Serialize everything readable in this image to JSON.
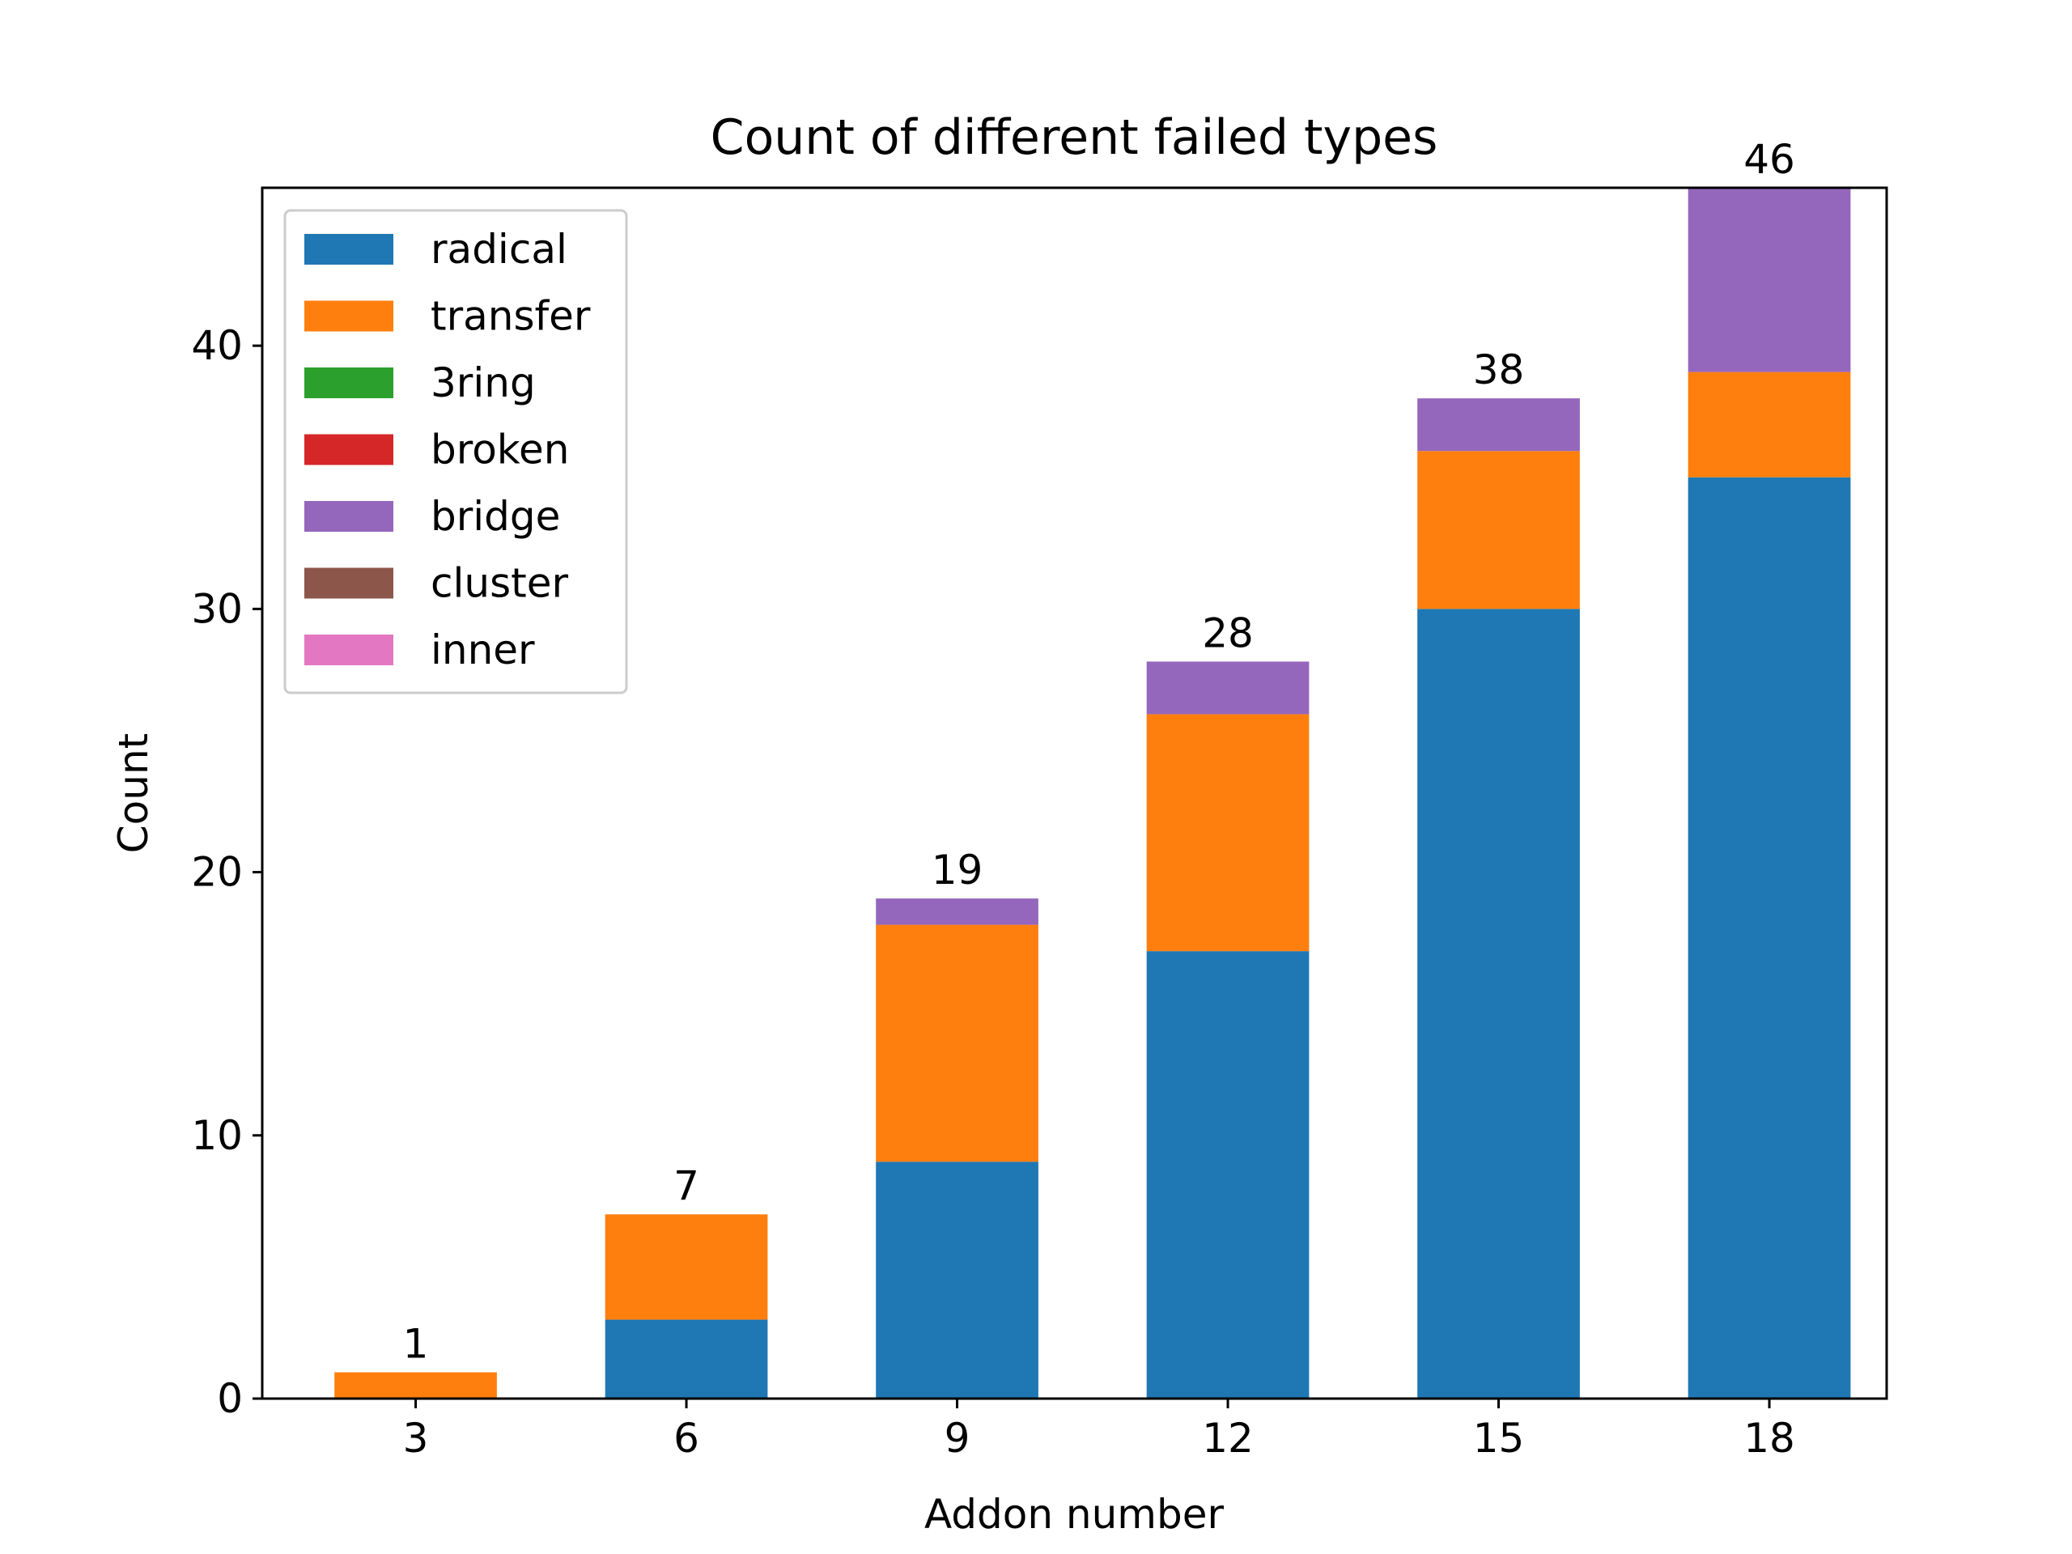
{
  "chart_data": {
    "type": "bar",
    "stacked": true,
    "title": "Count of different failed types",
    "xlabel": "Addon number",
    "ylabel": "Count",
    "categories": [
      "3",
      "6",
      "9",
      "12",
      "15",
      "18"
    ],
    "x_ticks": [
      "3",
      "6",
      "9",
      "12",
      "15",
      "18"
    ],
    "y_ticks": [
      "0",
      "10",
      "20",
      "30",
      "40"
    ],
    "xlim": [
      1.3,
      19.3
    ],
    "ylim": [
      0,
      46
    ],
    "grid": false,
    "legend_position": "top-left",
    "series": [
      {
        "name": "radical",
        "color": "#1f77b4",
        "values": [
          0,
          3,
          9,
          17,
          30,
          35
        ]
      },
      {
        "name": "transfer",
        "color": "#ff7f0e",
        "values": [
          1,
          4,
          9,
          9,
          6,
          4
        ]
      },
      {
        "name": "3ring",
        "color": "#2ca02c",
        "values": [
          0,
          0,
          0,
          0,
          0,
          0
        ]
      },
      {
        "name": "broken",
        "color": "#d62728",
        "values": [
          0,
          0,
          0,
          0,
          0,
          0
        ]
      },
      {
        "name": "bridge",
        "color": "#9467bd",
        "values": [
          0,
          0,
          1,
          2,
          2,
          7
        ]
      },
      {
        "name": "cluster",
        "color": "#8c564b",
        "values": [
          0,
          0,
          0,
          0,
          0,
          0
        ]
      },
      {
        "name": "inner",
        "color": "#e377c2",
        "values": [
          0,
          0,
          0,
          0,
          0,
          0
        ]
      }
    ],
    "totals": [
      "1",
      "7",
      "19",
      "28",
      "38",
      "46"
    ]
  }
}
